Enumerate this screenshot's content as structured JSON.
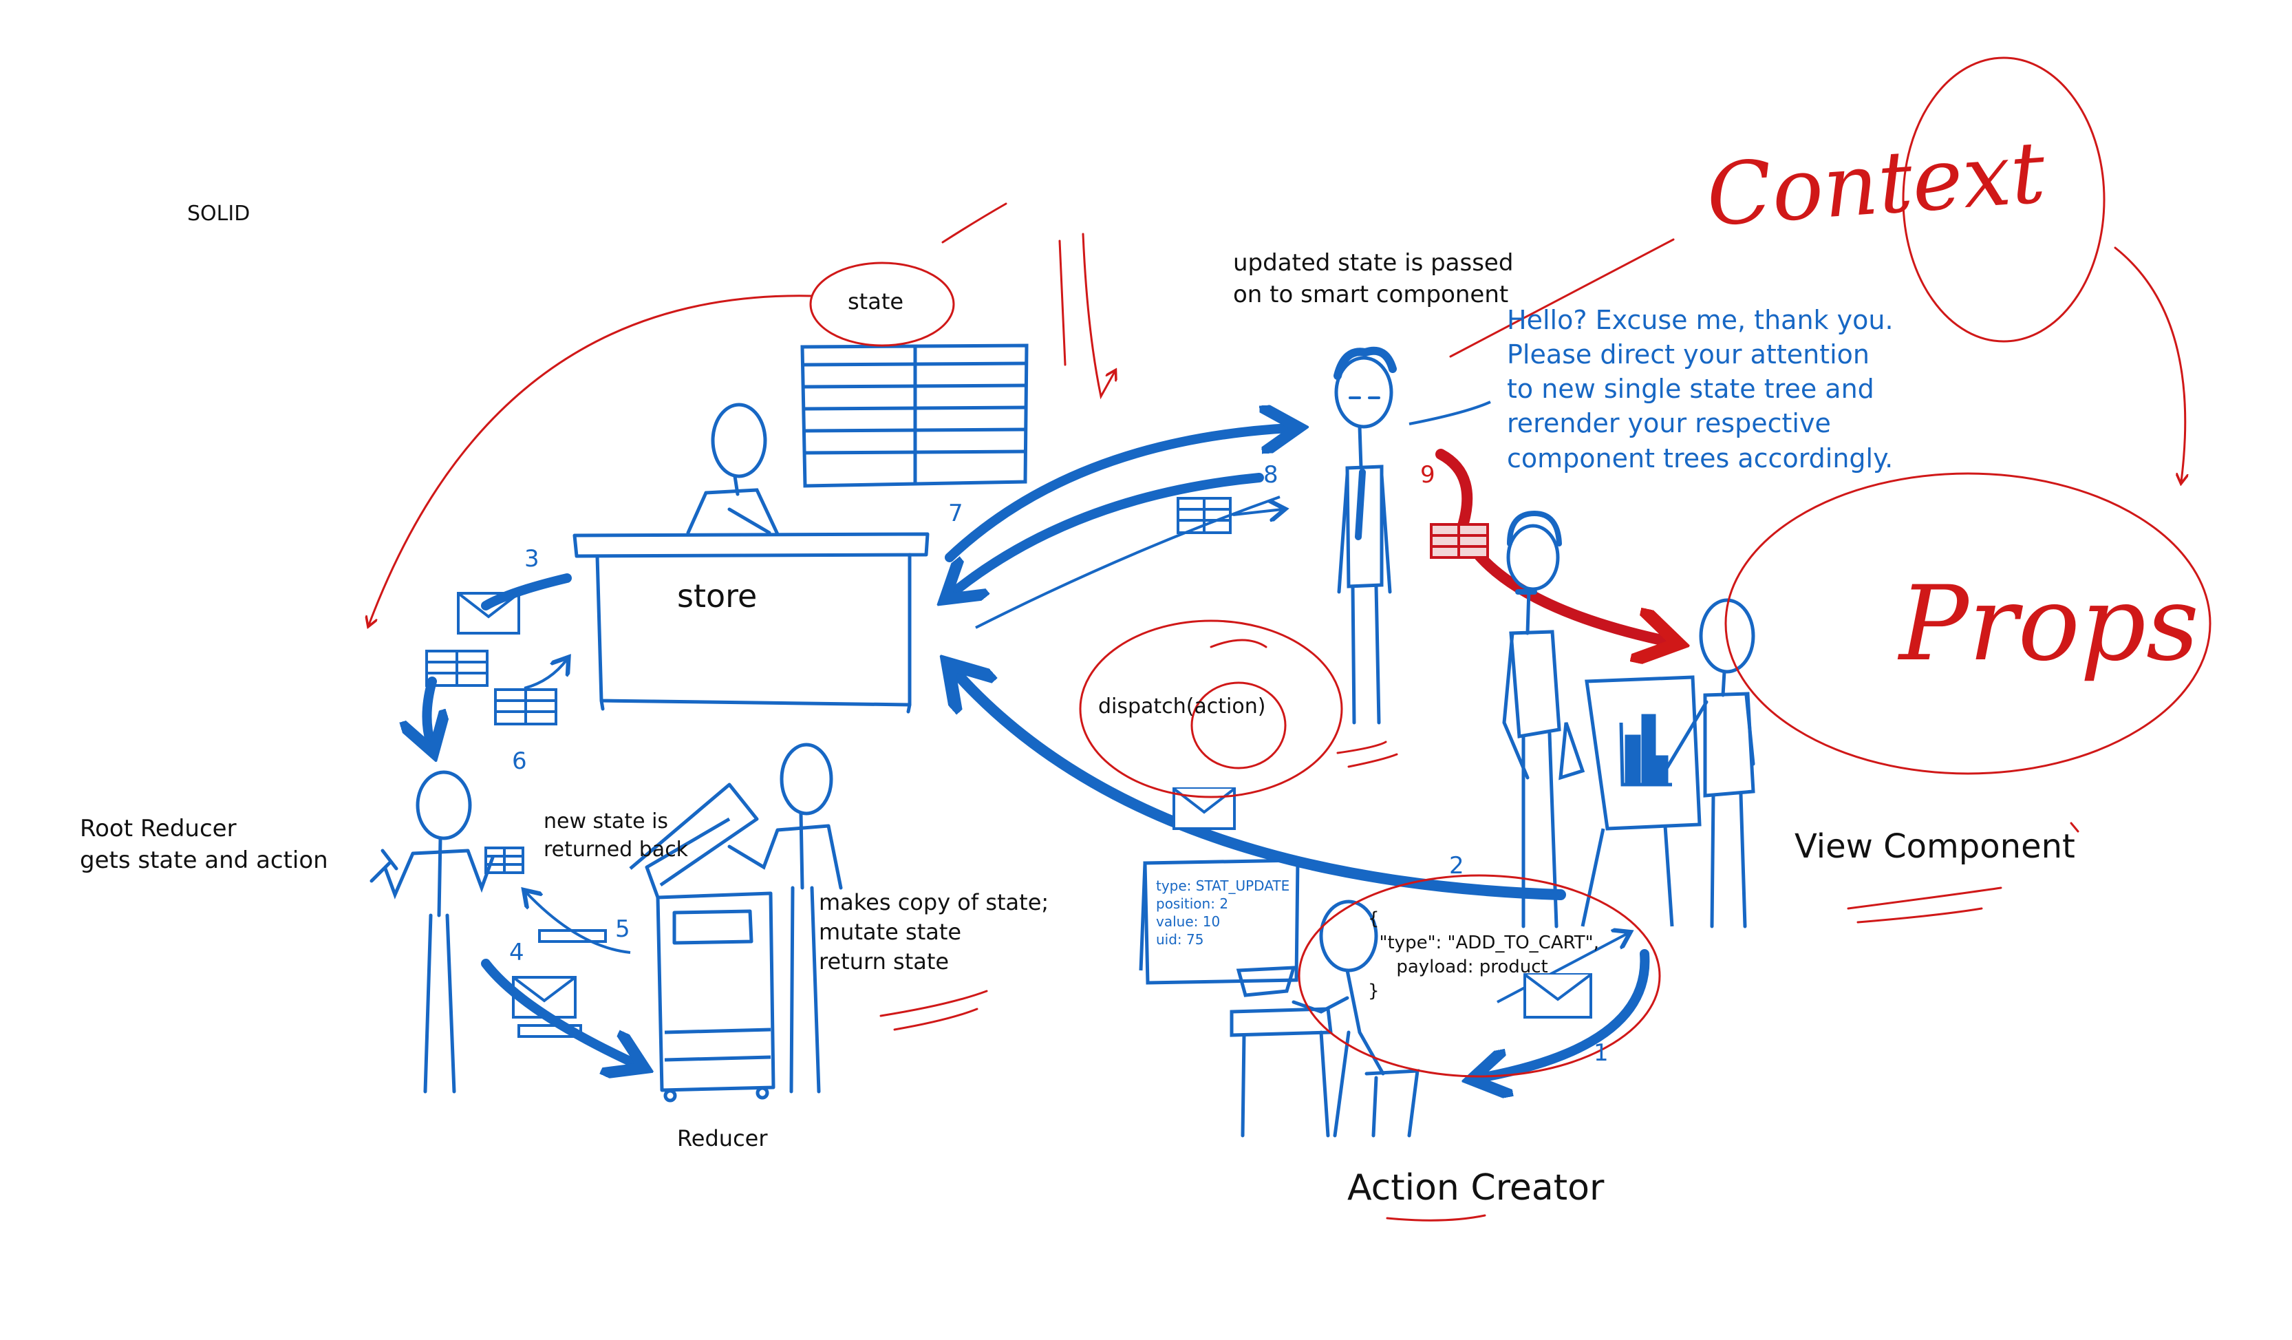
{
  "corner_label": "SOLID",
  "nodes": {
    "store": "store",
    "state": "state",
    "reducer": "Reducer",
    "view_component": "View Component",
    "action_creator": "Action Creator",
    "dispatch": "dispatch(action)"
  },
  "notes": {
    "updated_state": "updated state is passed\non to smart component",
    "speech": "Hello? Excuse me, thank you.\nPlease direct your attention\nto new single state tree and\nrerender your respective\ncomponent trees accordingly.",
    "root_reducer": "Root Reducer\ngets state and action",
    "new_state": "new state is\nreturned back",
    "makes_copy": "makes copy of state;\nmutate state\nreturn state",
    "action_object": "{\n  \"type\": \"ADD_TO_CART\",\n     payload: product\n}",
    "whiteboard": "type: STAT_UPDATE\nposition: 2\nvalue: 10\nuid: 75"
  },
  "step_numbers": [
    "1",
    "2",
    "3",
    "4",
    "5",
    "6",
    "7",
    "8",
    "9"
  ],
  "annotations": {
    "context": "Context",
    "props": "Props"
  },
  "colors": {
    "ink_blue": "#1767c4",
    "ink_red": "#d01818",
    "text": "#111111"
  }
}
